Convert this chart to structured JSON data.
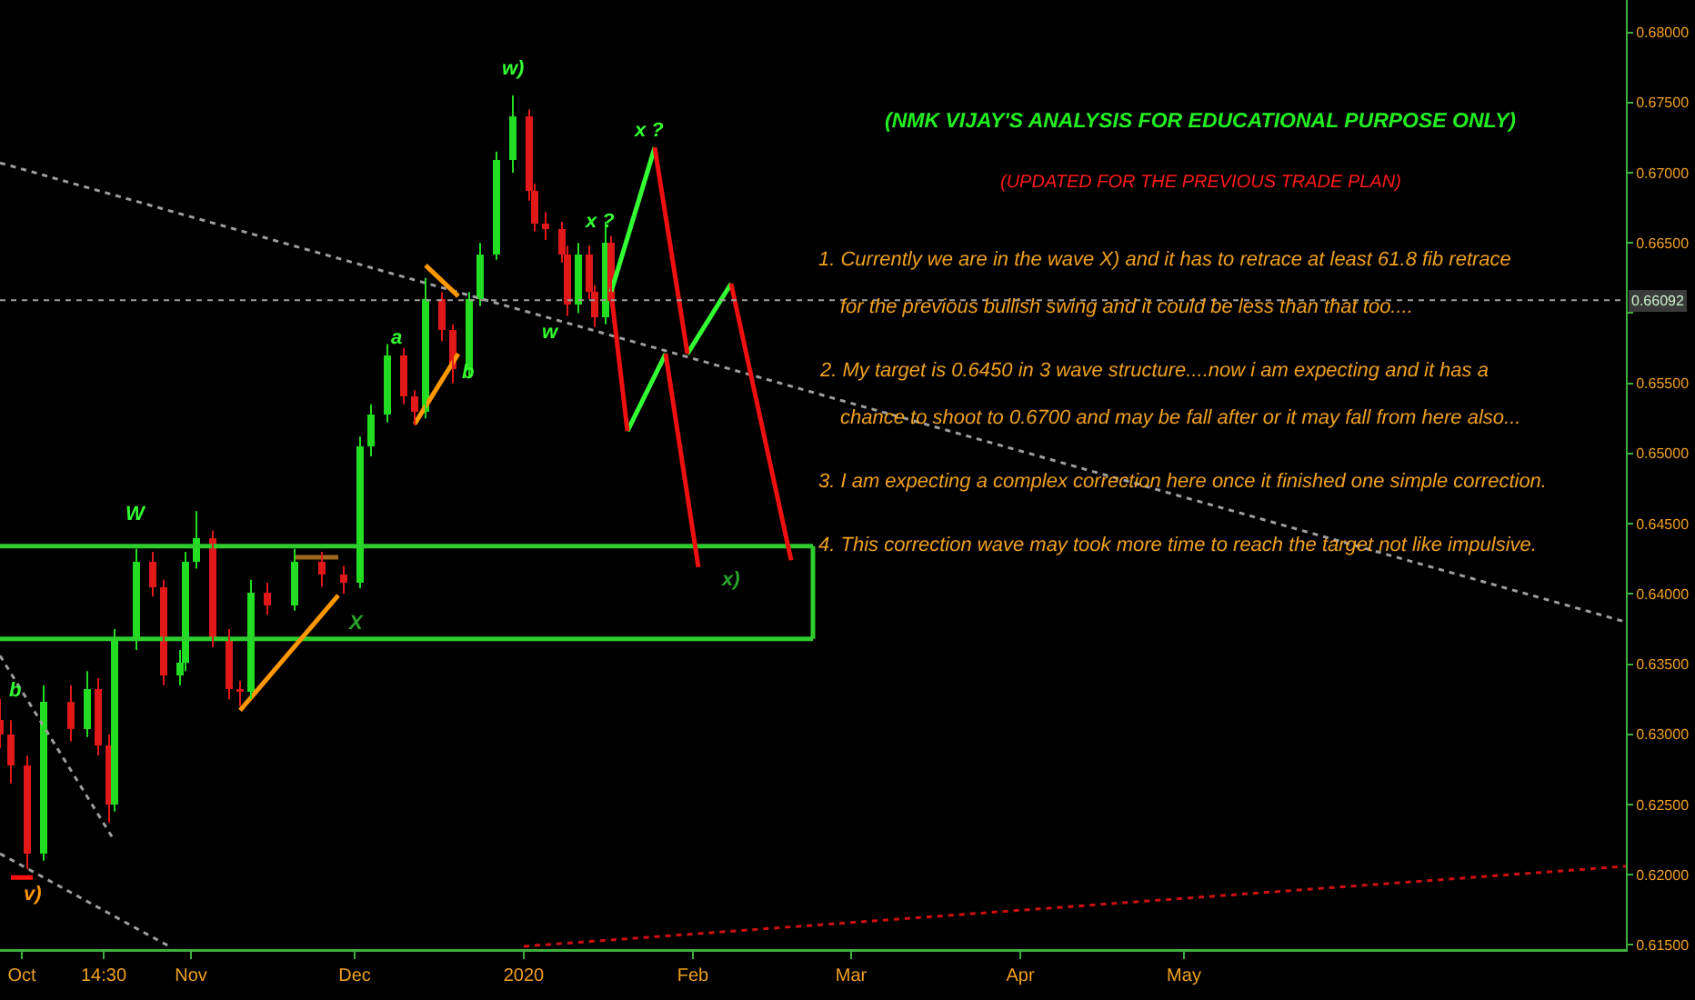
{
  "chart_data": {
    "type": "candlestick",
    "title": "(NMK VIJAY'S ANALYSIS FOR EDUCATIONAL PURPOSE ONLY)",
    "subtitle": "(UPDATED FOR THE PREVIOUS TRADE PLAN)",
    "x": [
      "2019-09-27",
      "2019-09-29",
      "2019-10-02",
      "2019-10-05",
      "2019-10-10",
      "2019-10-13",
      "2019-10-15",
      "2019-10-17",
      "2019-10-18",
      "2019-10-22",
      "2019-10-25",
      "2019-10-27",
      "2019-10-30",
      "2019-10-31",
      "2019-11-02",
      "2019-11-05",
      "2019-11-08",
      "2019-11-10",
      "2019-11-12",
      "2019-11-15",
      "2019-11-20",
      "2019-11-25",
      "2019-11-29",
      "2019-12-02",
      "2019-12-04",
      "2019-12-07",
      "2019-12-10",
      "2019-12-12",
      "2019-12-14",
      "2019-12-17",
      "2019-12-19",
      "2019-12-22",
      "2019-12-24",
      "2019-12-27",
      "2019-12-30",
      "2020-01-02",
      "2020-01-03",
      "2020-01-05",
      "2020-01-08",
      "2020-01-09",
      "2020-01-11",
      "2020-01-13",
      "2020-01-14",
      "2020-01-16",
      "2020-01-17"
    ],
    "ohlc": [
      [
        0.631,
        0.6325,
        0.629,
        0.63
      ],
      [
        0.63,
        0.631,
        0.6265,
        0.6278
      ],
      [
        0.6278,
        0.6285,
        0.6204,
        0.6215
      ],
      [
        0.6215,
        0.6335,
        0.621,
        0.6323
      ],
      [
        0.6323,
        0.6335,
        0.6295,
        0.6304
      ],
      [
        0.6304,
        0.6345,
        0.6298,
        0.6332
      ],
      [
        0.6332,
        0.634,
        0.6285,
        0.6292
      ],
      [
        0.6292,
        0.63,
        0.6237,
        0.625
      ],
      [
        0.625,
        0.6375,
        0.6245,
        0.6369
      ],
      [
        0.6369,
        0.6432,
        0.636,
        0.6423
      ],
      [
        0.6423,
        0.643,
        0.6398,
        0.6405
      ],
      [
        0.6405,
        0.641,
        0.6335,
        0.6342
      ],
      [
        0.6342,
        0.636,
        0.6335,
        0.6351
      ],
      [
        0.6351,
        0.643,
        0.6345,
        0.6423
      ],
      [
        0.6423,
        0.6459,
        0.6418,
        0.644
      ],
      [
        0.644,
        0.6445,
        0.6362,
        0.6369
      ],
      [
        0.6369,
        0.6375,
        0.6325,
        0.6332
      ],
      [
        0.6332,
        0.6338,
        0.632,
        0.633
      ],
      [
        0.633,
        0.641,
        0.6325,
        0.6401
      ],
      [
        0.6401,
        0.6408,
        0.6385,
        0.6392
      ],
      [
        0.6392,
        0.6432,
        0.6388,
        0.6423
      ],
      [
        0.6423,
        0.643,
        0.6405,
        0.6414
      ],
      [
        0.6414,
        0.642,
        0.64,
        0.6408
      ],
      [
        0.6408,
        0.6512,
        0.6404,
        0.6505
      ],
      [
        0.6505,
        0.6535,
        0.6498,
        0.6528
      ],
      [
        0.6528,
        0.6578,
        0.6522,
        0.657
      ],
      [
        0.657,
        0.6575,
        0.6535,
        0.6541
      ],
      [
        0.6541,
        0.6545,
        0.652,
        0.653
      ],
      [
        0.653,
        0.6625,
        0.6525,
        0.661
      ],
      [
        0.661,
        0.6615,
        0.658,
        0.6588
      ],
      [
        0.6588,
        0.6592,
        0.655,
        0.656
      ],
      [
        0.656,
        0.6615,
        0.6555,
        0.661
      ],
      [
        0.661,
        0.665,
        0.6605,
        0.6642
      ],
      [
        0.6642,
        0.6715,
        0.6638,
        0.6709
      ],
      [
        0.6709,
        0.6755,
        0.67,
        0.674
      ],
      [
        0.674,
        0.6745,
        0.668,
        0.6687
      ],
      [
        0.6687,
        0.6692,
        0.6658,
        0.6664
      ],
      [
        0.6664,
        0.6672,
        0.6652,
        0.666
      ],
      [
        0.666,
        0.6665,
        0.6636,
        0.6642
      ],
      [
        0.6642,
        0.6648,
        0.6598,
        0.6606
      ],
      [
        0.6606,
        0.665,
        0.66,
        0.6642
      ],
      [
        0.6642,
        0.6648,
        0.661,
        0.6615
      ],
      [
        0.6615,
        0.662,
        0.659,
        0.6597
      ],
      [
        0.6597,
        0.6665,
        0.6592,
        0.665
      ],
      [
        0.665,
        0.6655,
        0.6605,
        0.6609
      ]
    ],
    "series": [
      {
        "type": "line",
        "color": "#9e9e9e",
        "line_style": "dotted",
        "x": [
          "2019-09-27",
          "2020-07-21"
        ],
        "values": [
          0.6707,
          0.638
        ]
      },
      {
        "type": "line",
        "color": "#9e9e9e",
        "line_style": "dotted",
        "x": [
          "2019-09-27",
          "2019-10-18"
        ],
        "values": [
          0.6356,
          0.6224
        ]
      },
      {
        "type": "line",
        "color": "#9e9e9e",
        "line_style": "dotted",
        "x": [
          "2019-09-27",
          "2019-10-28"
        ],
        "values": [
          0.6215,
          0.6149
        ]
      },
      {
        "type": "line",
        "color": "#d01010",
        "line_style": "dotted",
        "x": [
          "2020-01-01",
          "2020-07-21"
        ],
        "values": [
          0.6149,
          0.6206
        ]
      },
      {
        "type": "line",
        "color": "#2ecc2e",
        "line_style": "solid",
        "x": [
          "2019-09-27",
          "2020-02-23"
        ],
        "values": [
          0.6434,
          0.6434
        ]
      },
      {
        "type": "line",
        "color": "#2ecc2e",
        "line_style": "solid",
        "x": [
          "2019-09-27",
          "2020-02-23"
        ],
        "values": [
          0.6368,
          0.6368
        ]
      },
      {
        "type": "line",
        "color": "#2ecc2e",
        "line_style": "solid",
        "x": [
          "2020-02-23",
          "2020-02-23"
        ],
        "values": [
          0.6434,
          0.6368
        ]
      },
      {
        "type": "line",
        "color": "#a0661c",
        "line_style": "solid",
        "x": [
          "2019-11-20",
          "2019-11-28"
        ],
        "values": [
          0.6426,
          0.6426
        ]
      },
      {
        "type": "line",
        "color": "#ff9800",
        "line_style": "solid",
        "x": [
          "2019-11-10",
          "2019-11-28"
        ],
        "values": [
          0.6317,
          0.6399
        ]
      },
      {
        "type": "line",
        "color": "#ff9800",
        "line_style": "solid",
        "x": [
          "2019-12-12",
          "2019-12-20"
        ],
        "values": [
          0.6521,
          0.6571
        ]
      },
      {
        "type": "line",
        "color": "#ff9800",
        "line_style": "solid",
        "x": [
          "2019-12-14",
          "2019-12-20"
        ],
        "values": [
          0.6634,
          0.6612
        ]
      },
      {
        "type": "line",
        "color": "#ff1010",
        "line_style": "solid",
        "x": [
          "2019-09-29",
          "2019-10-03"
        ],
        "values": [
          0.6198,
          0.6198
        ]
      },
      {
        "type": "line",
        "color": "#33ff33",
        "line_style": "solid",
        "x": [
          "2020-01-17",
          "2020-01-25"
        ],
        "values": [
          0.6615,
          0.6718
        ]
      },
      {
        "type": "line",
        "color": "#33ff33",
        "line_style": "solid",
        "x": [
          "2020-01-31",
          "2020-02-08"
        ],
        "values": [
          0.6571,
          0.6621
        ]
      },
      {
        "type": "line",
        "color": "#33ff33",
        "line_style": "solid",
        "x": [
          "2020-01-20",
          "2020-01-27"
        ],
        "values": [
          0.6516,
          0.6571
        ]
      },
      {
        "type": "line",
        "color": "#ee1010",
        "line_style": "solid",
        "x": [
          "2020-01-25",
          "2020-01-31"
        ],
        "values": [
          0.6718,
          0.6571
        ]
      },
      {
        "type": "line",
        "color": "#ee1010",
        "line_style": "solid",
        "x": [
          "2020-02-08",
          "2020-02-19"
        ],
        "values": [
          0.6621,
          0.6424
        ]
      },
      {
        "type": "line",
        "color": "#ee1010",
        "line_style": "solid",
        "x": [
          "2020-01-17",
          "2020-01-20"
        ],
        "values": [
          0.6615,
          0.6516
        ]
      },
      {
        "type": "line",
        "color": "#ee1010",
        "line_style": "solid",
        "x": [
          "2020-01-27",
          "2020-02-02"
        ],
        "values": [
          0.6571,
          0.6419
        ]
      }
    ],
    "ref_lines": [
      {
        "axis": "y",
        "value": 0.66092,
        "label": "0.66092",
        "color": "#9e9e9e",
        "line_style": "dotted"
      }
    ],
    "annotations": [
      "v)",
      "b",
      "W",
      "X",
      "a",
      "b",
      "w)",
      "w",
      "x ?",
      "x ?",
      "x)",
      "1. Currently we are in the wave X) and it has to retrace at least 61.8 fib retrace\nfor the previous bullish swing and it could be less than that too....",
      "2. My target is 0.6450 in 3 wave structure....now i am expecting and it has a\nchance to shoot to 0.6700 and may be fall after or it may fall from here also...",
      "3. I am expecting a complex correction here once it finished one simple correction.",
      "4. This correction wave may took more time to reach the target not like impulsive."
    ],
    "xlim": [
      "2019-09-27",
      "2020-07-21"
    ],
    "xticks": [
      {
        "value": "2019-10-01",
        "label": "Oct"
      },
      {
        "value": "2019-10-16",
        "label": "14:30"
      },
      {
        "value": "2019-11-01",
        "label": "Nov"
      },
      {
        "value": "2019-12-01",
        "label": "Dec"
      },
      {
        "value": "2020-01-01",
        "label": "2020"
      },
      {
        "value": "2020-02-01",
        "label": "Feb"
      },
      {
        "value": "2020-03-01",
        "label": "Mar"
      },
      {
        "value": "2020-04-01",
        "label": "Apr"
      },
      {
        "value": "2020-05-01",
        "label": "May"
      }
    ],
    "ylim": [
      0.6147,
      0.6823
    ],
    "yticks": [
      {
        "value": 0.615,
        "label": "0.61500"
      },
      {
        "value": 0.62,
        "label": "0.62000"
      },
      {
        "value": 0.625,
        "label": "0.62500"
      },
      {
        "value": 0.63,
        "label": "0.63000"
      },
      {
        "value": 0.635,
        "label": "0.63500"
      },
      {
        "value": 0.64,
        "label": "0.64000"
      },
      {
        "value": 0.645,
        "label": "0.64500"
      },
      {
        "value": 0.65,
        "label": "0.65000"
      },
      {
        "value": 0.655,
        "label": "0.65500"
      },
      {
        "value": 0.66,
        "label": null
      },
      {
        "value": 0.665,
        "label": "0.66500"
      },
      {
        "value": 0.67,
        "label": "0.67000"
      },
      {
        "value": 0.675,
        "label": "0.67500"
      },
      {
        "value": 0.68,
        "label": "0.68000"
      }
    ],
    "grid": false
  }
}
